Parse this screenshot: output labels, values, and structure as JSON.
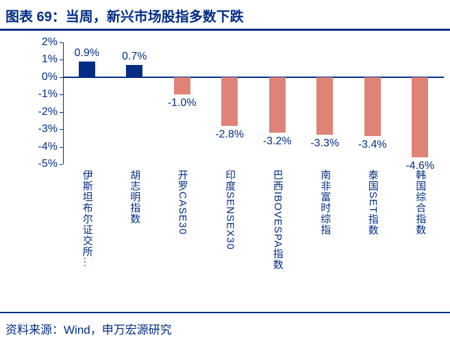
{
  "header": {
    "title": "图表 69：当周，新兴市场股指多数下跌"
  },
  "footer": {
    "source": "资料来源：Wind，申万宏源研究"
  },
  "colors": {
    "navy": "#002C85",
    "positive_bar": "#042C84",
    "negative_bar": "#DF8377"
  },
  "chart_data": {
    "type": "bar",
    "title": "图表 69：当周，新兴市场股指多数下跌",
    "categories": [
      "伊斯坦布尔证交所...",
      "胡志明指数",
      "开罗CASE30",
      "印度SENSEX30",
      "巴西IBOVESPA指数",
      "南非富时综指",
      "泰国SET指数",
      "韩国综合指数"
    ],
    "values": [
      0.9,
      0.7,
      -1.0,
      -2.8,
      -3.2,
      -3.3,
      -3.4,
      -4.6
    ],
    "value_labels": [
      "0.9%",
      "0.7%",
      "-1.0%",
      "-2.8%",
      "-3.2%",
      "-3.3%",
      "-3.4%",
      "-4.6%"
    ],
    "y_ticks": [
      "2%",
      "1%",
      "0%",
      "-1%",
      "-2%",
      "-3%",
      "-4%",
      "-5%"
    ],
    "y_tick_values": [
      2,
      1,
      0,
      -1,
      -2,
      -3,
      -4,
      -5
    ],
    "ylim": [
      -5,
      2
    ],
    "xlabel": "",
    "ylabel": "",
    "grid": false,
    "legend": "none",
    "bar_color_positive": "#042C84",
    "bar_color_negative": "#DF8377"
  }
}
